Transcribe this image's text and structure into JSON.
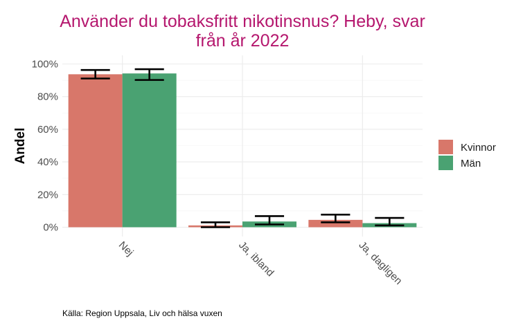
{
  "chart_data": {
    "type": "bar",
    "title_lines": [
      "Använder du tobaksfritt nikotinsnus? Heby, svar",
      "från år 2022"
    ],
    "ylabel": "Andel",
    "xlabel": "",
    "categories": [
      "Nej",
      "Ja, ibland",
      "Ja, dagligen"
    ],
    "ylim": [
      0,
      1.0
    ],
    "yticks": [
      0,
      0.2,
      0.4,
      0.6,
      0.8,
      1.0
    ],
    "ytick_labels": [
      "0%",
      "20%",
      "40%",
      "60%",
      "80%",
      "100%"
    ],
    "series": [
      {
        "name": "Kvinnor",
        "color": "#d8776a",
        "values": [
          0.937,
          0.011,
          0.045
        ],
        "ci_low": [
          0.911,
          0.0,
          0.03
        ],
        "ci_high": [
          0.963,
          0.03,
          0.077
        ]
      },
      {
        "name": "Män",
        "color": "#4aa272",
        "values": [
          0.942,
          0.035,
          0.025
        ],
        "ci_low": [
          0.902,
          0.017,
          0.011
        ],
        "ci_high": [
          0.968,
          0.068,
          0.057
        ]
      }
    ],
    "legend_position": "right",
    "grid": true,
    "caption": "Källa: Region Uppsala, Liv och hälsa vuxen"
  }
}
